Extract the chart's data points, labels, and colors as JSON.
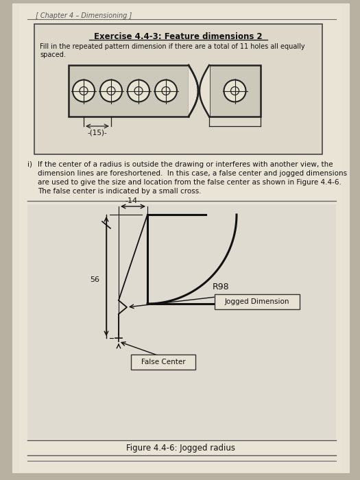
{
  "bg_color": "#b8b0a0",
  "page_color": "#e8e2d4",
  "box_color": "#ddd8ca",
  "header_text": "[ Chapter 4 – Dimensioning ]",
  "exercise_title": "Exercise 4.4-3: Feature dimensions 2",
  "exercise_line1": "Fill in the repeated pattern dimension if there are a total of 11 holes all equally",
  "exercise_line2": "spaced.",
  "dim_label": "-(15)-",
  "info_i": "i)",
  "info_line1": "If the center of a radius is outside the drawing or interferes with another view, the",
  "info_line2": "dimension lines are foreshortened.  In this case, a false center and jogged dimensions",
  "info_line3": "are used to give the size and location from the false center as shown in Figure 4.4-6.",
  "info_line4": "The false center is indicated by a small cross.",
  "fig_caption": "Figure 4.4-6: Jogged radius",
  "label_14": "-14-",
  "label_56": "56",
  "label_R98": "R98",
  "label_jogged": "Jogged Dimension",
  "label_false": "False Center"
}
